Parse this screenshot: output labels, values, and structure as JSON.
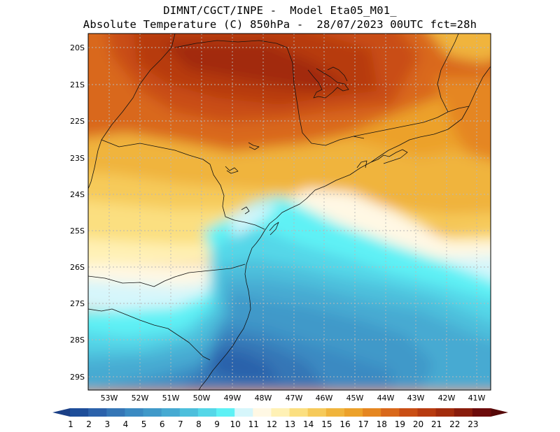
{
  "header": {
    "line1": "DIMNT/CGCT/INPE -  Model Eta05_M01_",
    "line2": "Absolute Temperature (C) 850hPa -  28/07/2023 00UTC fct=28h"
  },
  "map": {
    "lat_labels": [
      "20S",
      "21S",
      "22S",
      "23S",
      "24S",
      "25S",
      "26S",
      "27S",
      "28S",
      "29S"
    ],
    "lon_labels": [
      "53W",
      "52W",
      "51W",
      "50W",
      "49W",
      "48W",
      "47W",
      "46W",
      "45W",
      "44W",
      "43W",
      "42W",
      "41W"
    ]
  },
  "colorbar": {
    "labels": [
      "1",
      "2",
      "3",
      "4",
      "5",
      "6",
      "7",
      "8",
      "9",
      "10",
      "11",
      "12",
      "13",
      "14",
      "15",
      "16",
      "17",
      "18",
      "19",
      "20",
      "21",
      "22",
      "23"
    ],
    "colors": [
      "#1e4e9a",
      "#2c62ab",
      "#3576b6",
      "#3b8ac2",
      "#4099c9",
      "#46aad2",
      "#4dbfdc",
      "#55d7e8",
      "#5ef1f5",
      "#d6f6fb",
      "#fff8e4",
      "#fff1b5",
      "#fbdf80",
      "#f6ca5a",
      "#f0b43c",
      "#eca12a",
      "#e58620",
      "#d9681a",
      "#c94e14",
      "#b73b10",
      "#a22c0d",
      "#891c0c",
      "#6d0b0b"
    ],
    "under_color": "#1a3f86",
    "over_color": "#560808"
  }
}
